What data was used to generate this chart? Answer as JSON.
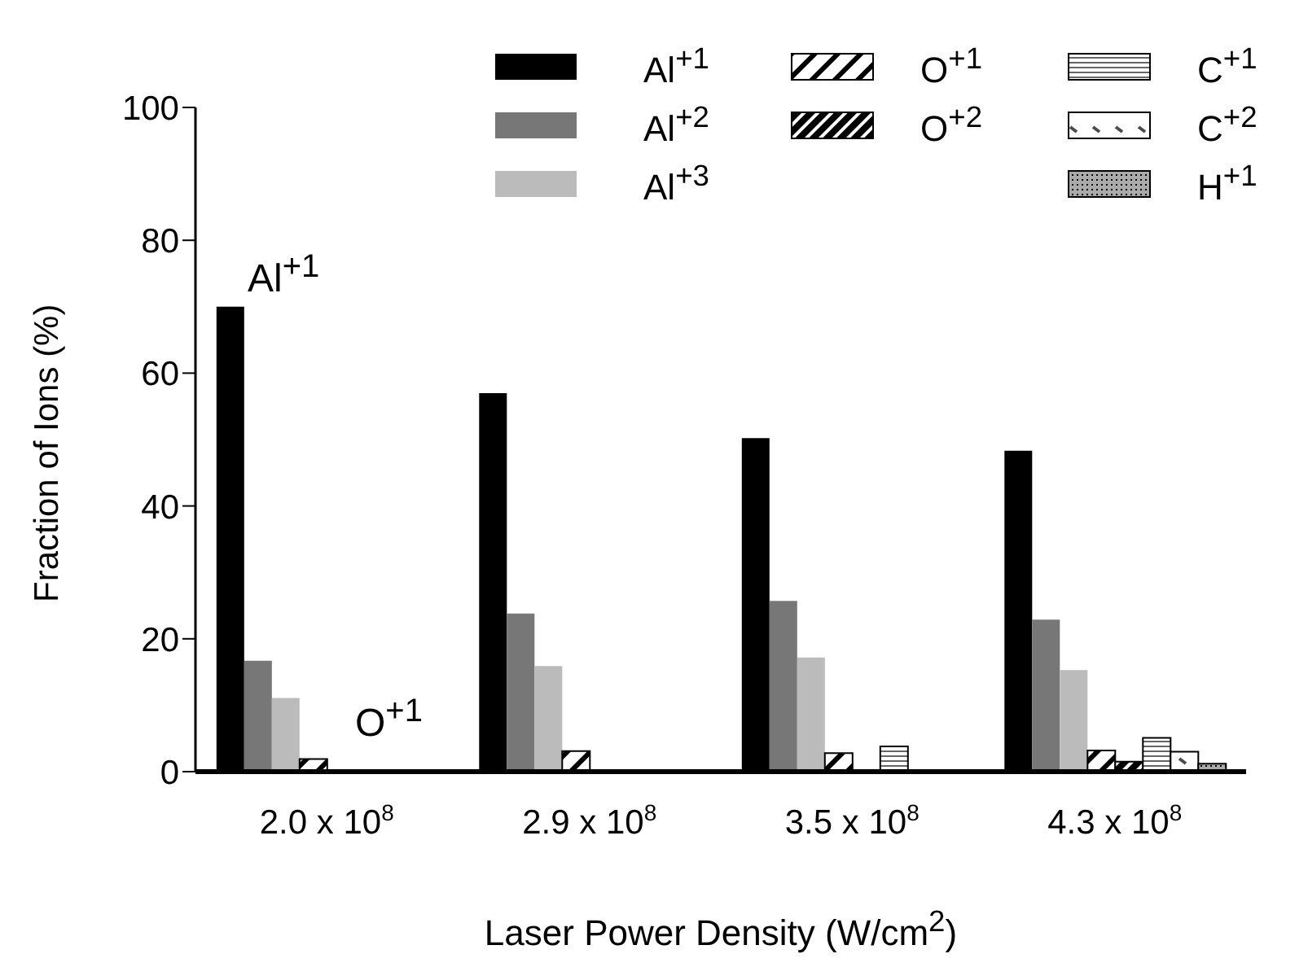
{
  "chart_data": {
    "type": "bar",
    "categories": [
      "2.0 x 10$^{8}$",
      "2.9 x 10$^{8}$",
      "3.5 x 10$^{8}$",
      "4.3 x 10$^{8}$"
    ],
    "xlabel": "Laser Power Density (W/cm$^{2}$)",
    "ylabel": "Fraction of Ions (%)",
    "series": [
      {
        "name": "Al$^{+1}$",
        "color": "#000000",
        "values": [
          70,
          57,
          50.2,
          48.3
        ]
      },
      {
        "name": "Al$^{+2}$",
        "color": "#777777",
        "values": [
          16.7,
          23.8,
          25.7,
          22.9
        ]
      },
      {
        "name": "Al$^{+3}$",
        "color": "#bbbbbb",
        "values": [
          11.1,
          15.9,
          17.2,
          15.3
        ]
      },
      {
        "name": "O$^{+1}$",
        "color": "#000000",
        "values": [
          1.9,
          3.1,
          2.8,
          3.2
        ]
      },
      {
        "name": "O$^{+2}$",
        "color": "#000000",
        "values": [
          0,
          0,
          0,
          1.5
        ]
      },
      {
        "name": "C$^{+1}$",
        "color": "#000000",
        "values": [
          0,
          0,
          3.8,
          5.1
        ]
      },
      {
        "name": "C$^{+2}$",
        "color": "#000000",
        "values": [
          0,
          0,
          0,
          3
        ]
      },
      {
        "name": "H$^{+1}$",
        "color": "#000000",
        "values": [
          0,
          0,
          0,
          1.2
        ]
      }
    ],
    "annotations": [
      "Al$^{+1}$",
      "O$^{+1}$"
    ],
    "ylim": [
      0,
      100
    ],
    "yticks": [
      0,
      20,
      40,
      60,
      80,
      100
    ],
    "legend": "top right"
  }
}
